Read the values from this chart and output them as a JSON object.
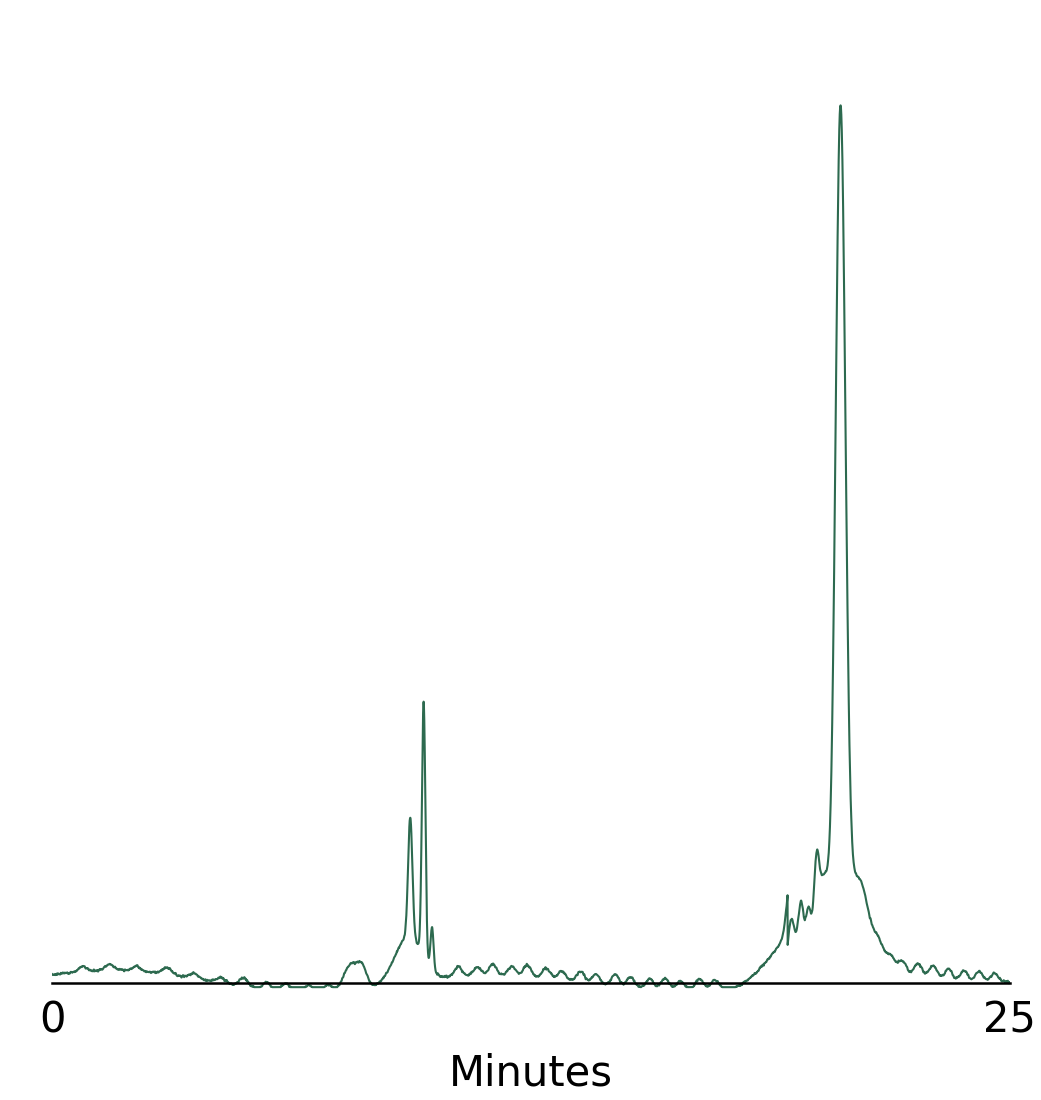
{
  "line_color": "#2d6a4f",
  "line_width": 1.5,
  "background_color": "#ffffff",
  "xlabel": "Minutes",
  "xlabel_fontsize": 30,
  "x_label_texts": [
    "0",
    "25"
  ],
  "x_label_fontsize": 30,
  "xlim": [
    0,
    25
  ],
  "ylim": [
    -0.02,
    1.05
  ],
  "figsize": [
    10.41,
    11.0
  ],
  "dpi": 100
}
